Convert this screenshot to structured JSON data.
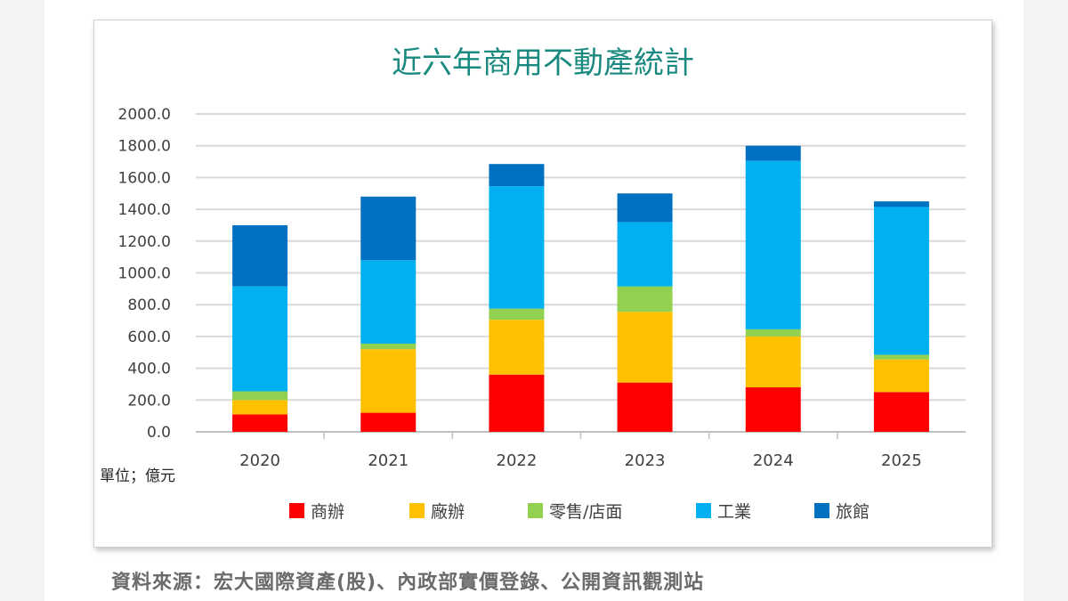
{
  "chart_data": {
    "type": "bar",
    "stacked": true,
    "title": "近六年商用不動產統計",
    "unit_label": "單位；億元",
    "categories": [
      "2020",
      "2021",
      "2022",
      "2023",
      "2024",
      "2025"
    ],
    "series": [
      {
        "name": "商辦",
        "color": "#ff0000",
        "values": [
          110,
          120,
          360,
          310,
          280,
          250
        ]
      },
      {
        "name": "廠辦",
        "color": "#ffc000",
        "values": [
          90,
          400,
          345,
          445,
          320,
          205
        ]
      },
      {
        "name": "零售/店面",
        "color": "#92d050",
        "values": [
          55,
          35,
          70,
          160,
          45,
          30
        ]
      },
      {
        "name": "工業",
        "color": "#00b0f0",
        "values": [
          660,
          525,
          770,
          405,
          1060,
          930
        ]
      },
      {
        "name": "旅館",
        "color": "#0070c0",
        "values": [
          385,
          400,
          140,
          180,
          95,
          35
        ]
      }
    ],
    "ylim": [
      0,
      2000
    ],
    "yticks": [
      "0.0",
      "200.0",
      "400.0",
      "600.0",
      "800.0",
      "1000.0",
      "1200.0",
      "1400.0",
      "1600.0",
      "1800.0",
      "2000.0"
    ],
    "grid": true,
    "legend_position": "bottom",
    "title_color": "#1a8a80"
  },
  "source": "資料來源：宏大國際資產(股)、內政部實價登錄、公開資訊觀測站"
}
